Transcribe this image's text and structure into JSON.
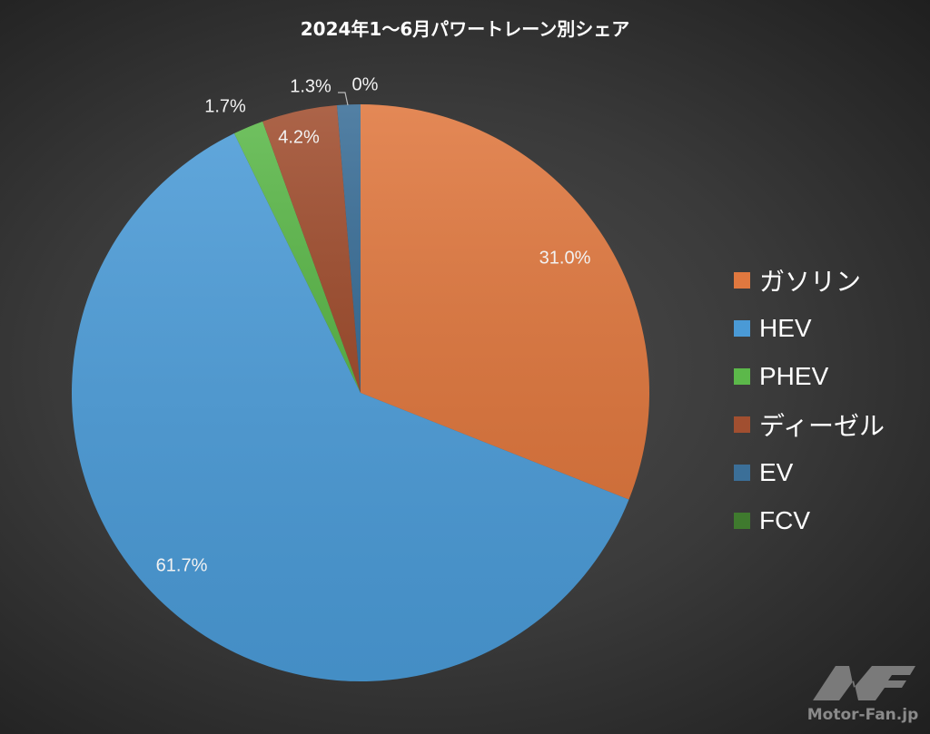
{
  "chart_data": {
    "type": "pie",
    "title": "2024年1〜6月パワートレーン別シェア",
    "start_angle": "12 o'clock, clockwise",
    "categories": [
      "ガソリン",
      "HEV",
      "PHEV",
      "ディーゼル",
      "EV",
      "FCV"
    ],
    "values": [
      31.0,
      61.7,
      1.7,
      4.2,
      1.3,
      0
    ],
    "data_labels": [
      "31.0%",
      "61.7%",
      "1.7%",
      "4.2%",
      "1.3%",
      "0%"
    ],
    "colors": [
      "#e0783f",
      "#4a9ad6",
      "#5cb84a",
      "#a14f30",
      "#3b6f98",
      "#3f7a2e"
    ],
    "legend_position": "right"
  },
  "logo": {
    "text": "Motor-Fan.jp"
  }
}
